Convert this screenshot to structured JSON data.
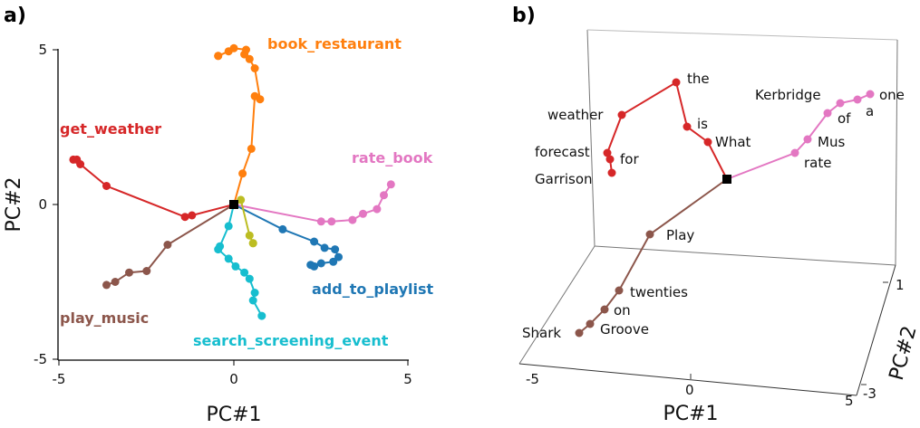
{
  "chart_data": [
    {
      "panel": "a)",
      "type": "line",
      "xlabel": "PC#1",
      "ylabel": "PC#2",
      "xlim": [
        -5,
        5
      ],
      "ylim": [
        -5,
        5
      ],
      "xticks": [
        "-5",
        "0",
        "5"
      ],
      "yticks": [
        "5",
        "0",
        "-5"
      ],
      "grid": false,
      "origin_marker": [
        0,
        0
      ],
      "series": [
        {
          "name": "book_restaurant",
          "color": "#ff7f0e",
          "x": [
            0.0,
            0.25,
            0.5,
            0.6,
            0.75,
            0.6,
            0.45,
            0.3,
            0.35,
            0.0,
            -0.15,
            -0.45,
            -0.45
          ],
          "y": [
            0.0,
            1.0,
            1.8,
            3.5,
            3.4,
            4.4,
            4.7,
            4.85,
            5.0,
            5.05,
            4.95,
            4.8,
            4.8
          ]
        },
        {
          "name": "get_weather",
          "color": "#d62728",
          "x": [
            0.0,
            -1.2,
            -1.4,
            -3.65,
            -4.4,
            -4.5,
            -4.6
          ],
          "y": [
            0.0,
            -0.35,
            -0.4,
            0.6,
            1.3,
            1.45,
            1.45
          ]
        },
        {
          "name": "rate_book",
          "color": "#e377c2",
          "x": [
            0.0,
            2.5,
            2.8,
            3.4,
            3.7,
            4.1,
            4.3,
            4.5
          ],
          "y": [
            0.0,
            -0.55,
            -0.55,
            -0.5,
            -0.3,
            -0.15,
            0.3,
            0.65
          ]
        },
        {
          "name": "add_to_playlist",
          "color": "#1f77b4",
          "x": [
            0.0,
            1.4,
            2.3,
            2.6,
            2.9,
            3.0,
            2.85,
            2.5,
            2.2,
            2.3
          ],
          "y": [
            0.0,
            -0.8,
            -1.2,
            -1.4,
            -1.45,
            -1.7,
            -1.85,
            -1.9,
            -1.95,
            -2.0
          ]
        },
        {
          "name": "play_music",
          "color": "#8c564b",
          "x": [
            0.0,
            -1.9,
            -2.5,
            -3.0,
            -3.4,
            -3.65
          ],
          "y": [
            0.0,
            -1.3,
            -2.15,
            -2.2,
            -2.5,
            -2.6
          ]
        },
        {
          "name": "search_screening_event",
          "color": "#17becf",
          "x": [
            0.0,
            -0.15,
            -0.4,
            -0.45,
            -0.15,
            0.05,
            0.3,
            0.45,
            0.6,
            0.55,
            0.8
          ],
          "y": [
            0.0,
            -0.7,
            -1.35,
            -1.45,
            -1.75,
            -2.0,
            -2.2,
            -2.4,
            -2.85,
            -3.1,
            -3.6
          ]
        },
        {
          "name": "",
          "color": "#bcbd22",
          "x": [
            0.0,
            0.2,
            0.45,
            0.55,
            0.55
          ],
          "y": [
            0.0,
            0.15,
            -1.0,
            -1.25,
            -1.25
          ]
        }
      ],
      "annotations": [
        {
          "text": "book_restaurant",
          "color": "#ff7f0e"
        },
        {
          "text": "get_weather",
          "color": "#d62728"
        },
        {
          "text": "rate_book",
          "color": "#e377c2"
        },
        {
          "text": "add_to_playlist",
          "color": "#1f77b4"
        },
        {
          "text": "play_music",
          "color": "#8c564b"
        },
        {
          "text": "search_screening_event",
          "color": "#17becf"
        }
      ]
    },
    {
      "panel": "b)",
      "type": "line",
      "projection": "3d",
      "xlabel": "PC#1",
      "ylabel": "PC#2",
      "xticks": [
        "-5",
        "0",
        "5"
      ],
      "yticks": [
        "1",
        "-3"
      ],
      "origin_marker": true,
      "series": [
        {
          "name": "get_weather",
          "color": "#d62728",
          "words": [
            "What",
            "is",
            "the",
            "weather",
            "forecast",
            "for",
            "Garrison"
          ]
        },
        {
          "name": "rate_book",
          "color": "#e377c2",
          "words": [
            "rate",
            "Mus",
            "of",
            "a",
            "one",
            "Kerbridge"
          ]
        },
        {
          "name": "play_music",
          "color": "#8c564b",
          "words": [
            "Play",
            "twenties",
            "on",
            "Groove",
            "Shark"
          ]
        }
      ],
      "word_labels": [
        "the",
        "weather",
        "is",
        "What",
        "forecast",
        "for",
        "Garrison",
        "Kerbridge",
        "one",
        "a",
        "of",
        "Mus",
        "rate",
        "Play",
        "twenties",
        "on",
        "Groove",
        "Shark"
      ]
    }
  ]
}
